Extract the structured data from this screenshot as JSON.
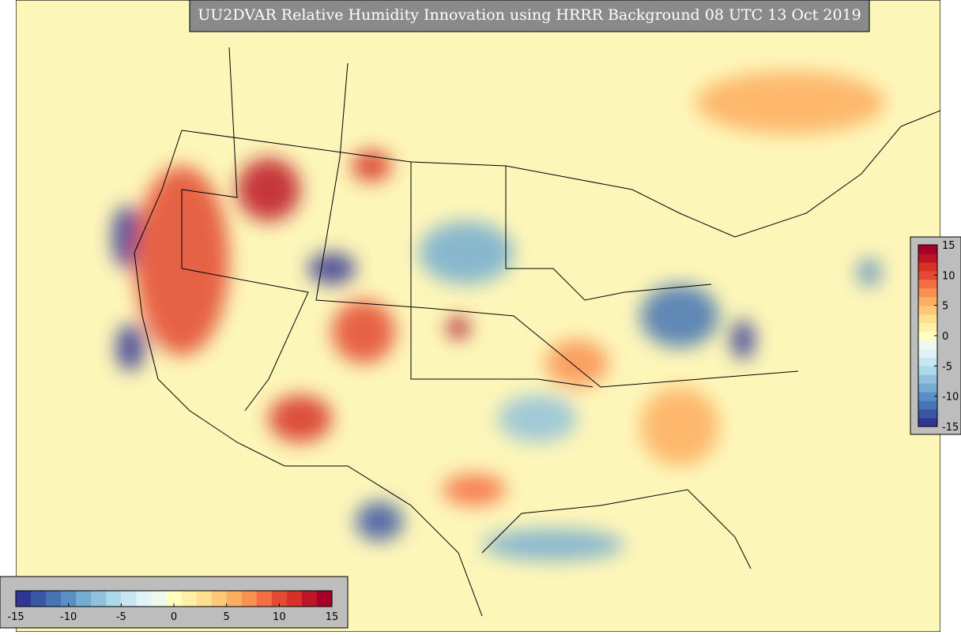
{
  "title": "UU2DVAR Relative Humidity Innovation using HRRR Background 08 UTC 13 Oct 2019",
  "colorbars": {
    "colors": [
      "#313695",
      "#3a56a5",
      "#4575b4",
      "#5b8ec2",
      "#74add1",
      "#91c1dc",
      "#abd9e9",
      "#c7e6f0",
      "#e0f3f8",
      "#f0f9ee",
      "#ffffbf",
      "#fff0a8",
      "#fee090",
      "#fdc878",
      "#fdae61",
      "#f99153",
      "#f46d43",
      "#e34a33",
      "#d73027",
      "#bd1526",
      "#a50026"
    ],
    "vertical": {
      "lim": [
        -15,
        15
      ],
      "ticks": [
        -15,
        -10,
        -5,
        0,
        5,
        10,
        15
      ]
    },
    "horizontal": {
      "lim": [
        -15,
        15
      ],
      "ticks": [
        -15,
        -10,
        -5,
        0,
        5,
        10,
        15
      ]
    }
  }
}
